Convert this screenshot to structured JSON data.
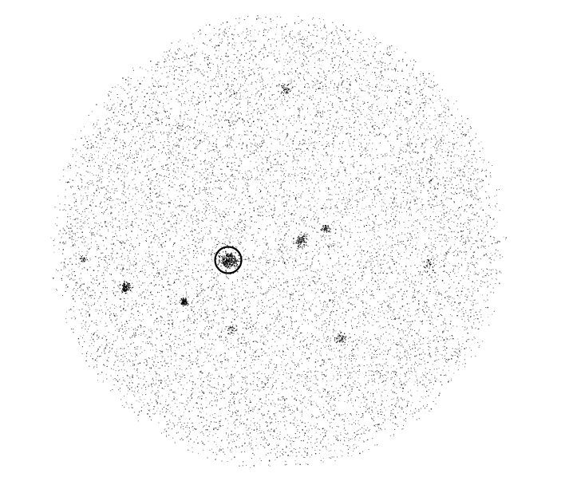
{
  "image": {
    "kind": "x-ray-event-map",
    "background_color": "#ffffff",
    "event_color": "#000000",
    "marker_color": "#000000",
    "field_shape": "circular",
    "event_density": "sparse-speckle",
    "visible_text": []
  },
  "sources": [
    {
      "name": "source-circled",
      "strength": "bright",
      "circled": true
    },
    {
      "name": "source-west",
      "strength": "medium",
      "circled": false
    },
    {
      "name": "source-southwest",
      "strength": "compact-bright",
      "circled": false
    },
    {
      "name": "source-center-east",
      "strength": "medium",
      "circled": false
    },
    {
      "name": "source-center-east-2",
      "strength": "faint",
      "circled": false
    },
    {
      "name": "source-north",
      "strength": "faint",
      "circled": false
    },
    {
      "name": "source-southeast",
      "strength": "faint",
      "circled": false
    },
    {
      "name": "source-east",
      "strength": "faint",
      "circled": false
    },
    {
      "name": "source-south-center",
      "strength": "faint",
      "circled": false
    },
    {
      "name": "source-far-west",
      "strength": "faint",
      "circled": false
    }
  ]
}
